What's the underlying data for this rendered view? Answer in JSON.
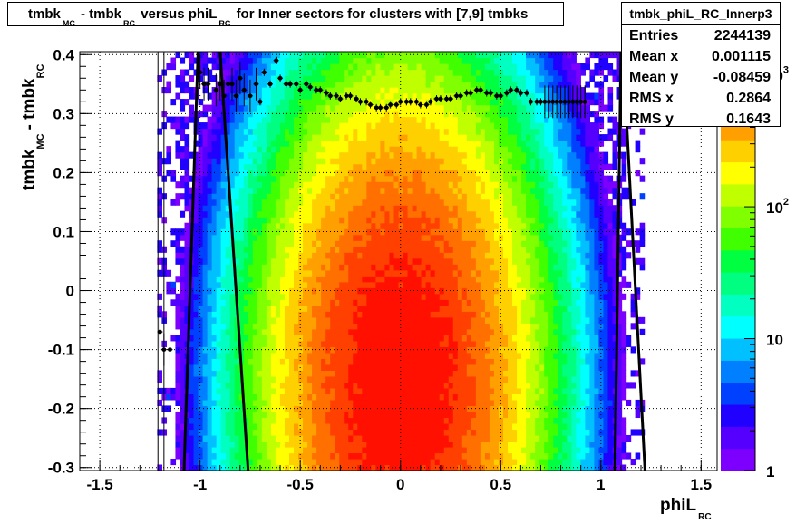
{
  "title": {
    "parts": [
      {
        "t": "tmbk",
        "sub": "MC"
      },
      {
        "t": "- tmbk",
        "sub": "RC"
      },
      {
        "t": "versus phiL",
        "sub": "RC"
      },
      {
        "t": "for Inner sectors for clusters with [7,9] tmbks",
        "sub": ""
      }
    ]
  },
  "stats": {
    "name": "tmbk_phiL_RC_Innerp3",
    "rows": [
      {
        "key": "Entries",
        "value": "2244139"
      },
      {
        "key": "Mean x",
        "value": "0.001115"
      },
      {
        "key": "Mean y",
        "value": "-0.08459"
      },
      {
        "key": "RMS x",
        "value": "0.2864"
      },
      {
        "key": "RMS y",
        "value": "0.1643"
      }
    ]
  },
  "colors": {
    "palette": [
      "#7d00ff",
      "#5500ff",
      "#2000ff",
      "#0040ff",
      "#0080ff",
      "#00c0ff",
      "#00ffff",
      "#00ffc0",
      "#00ff80",
      "#00ff40",
      "#40ff00",
      "#80ff00",
      "#c0ff00",
      "#ffff00",
      "#ffd000",
      "#ffa000",
      "#ff7000",
      "#ff4000",
      "#ff1000"
    ],
    "profile": "#000000",
    "contour": "#000000"
  },
  "chart_data": {
    "type": "heatmap",
    "xlabel": {
      "main": "phiL",
      "sub": "RC"
    },
    "ylabel": {
      "main": "tmbk",
      "sub1": "MC",
      "mid": "- tmbk",
      "sub2": "RC"
    },
    "xlim": [
      -1.6,
      1.58
    ],
    "ylim": [
      -0.305,
      0.405
    ],
    "x_ticks": [
      -1.5,
      -1,
      -0.5,
      0,
      0.5,
      1,
      1.5
    ],
    "x_tick_labels": [
      "-1.5",
      "-1",
      "-0.5",
      "0",
      "0.5",
      "1",
      "1.5"
    ],
    "y_ticks": [
      -0.3,
      -0.2,
      -0.1,
      0,
      0.1,
      0.2,
      0.3,
      0.4
    ],
    "y_tick_labels": [
      "-0.3",
      "-0.2",
      "-0.1",
      "0",
      "0.1",
      "0.2",
      "0.3",
      "0.4"
    ],
    "z_scale": "log",
    "z_range": [
      1,
      1500
    ],
    "z_tick_labels": [
      {
        "label": "1",
        "z": 1
      },
      {
        "label": "10",
        "z": 10
      },
      {
        "label": "10",
        "sup": "2",
        "z": 100
      },
      {
        "label": "10",
        "sup": "3",
        "z": 1000
      }
    ],
    "grid": true,
    "profile": {
      "x": [
        -1.2,
        -1.18,
        -1.15,
        -1.0,
        -0.98,
        -0.96,
        -0.92,
        -0.9,
        -0.88,
        -0.86,
        -0.84,
        -0.82,
        -0.8,
        -0.78,
        -0.75,
        -0.72,
        -0.7,
        -0.68,
        -0.65,
        -0.62,
        -0.6,
        -0.57,
        -0.55,
        -0.52,
        -0.5,
        -0.47,
        -0.45,
        -0.42,
        -0.4,
        -0.37,
        -0.35,
        -0.32,
        -0.3,
        -0.27,
        -0.25,
        -0.22,
        -0.2,
        -0.17,
        -0.15,
        -0.12,
        -0.1,
        -0.07,
        -0.05,
        -0.02,
        0.0,
        0.03,
        0.05,
        0.08,
        0.1,
        0.13,
        0.15,
        0.18,
        0.2,
        0.23,
        0.25,
        0.28,
        0.3,
        0.33,
        0.35,
        0.38,
        0.4,
        0.43,
        0.45,
        0.48,
        0.5,
        0.53,
        0.55,
        0.58,
        0.6,
        0.63,
        0.65,
        0.68,
        0.7,
        0.72,
        0.74,
        0.76,
        0.78,
        0.8,
        0.82,
        0.84,
        0.86,
        0.88,
        0.9,
        0.92
      ],
      "y": [
        -0.07,
        -0.1,
        -0.1,
        0.37,
        0.35,
        0.35,
        0.34,
        0.35,
        0.33,
        0.35,
        0.35,
        0.33,
        0.36,
        0.34,
        0.33,
        0.35,
        0.32,
        0.37,
        0.35,
        0.39,
        0.36,
        0.35,
        0.35,
        0.35,
        0.34,
        0.35,
        0.345,
        0.34,
        0.34,
        0.335,
        0.33,
        0.33,
        0.325,
        0.33,
        0.33,
        0.325,
        0.32,
        0.32,
        0.315,
        0.31,
        0.31,
        0.31,
        0.315,
        0.315,
        0.32,
        0.32,
        0.32,
        0.32,
        0.315,
        0.315,
        0.32,
        0.325,
        0.325,
        0.325,
        0.325,
        0.33,
        0.33,
        0.335,
        0.335,
        0.34,
        0.34,
        0.335,
        0.335,
        0.33,
        0.33,
        0.335,
        0.34,
        0.34,
        0.335,
        0.335,
        0.32,
        0.32,
        0.32,
        0.32,
        0.32,
        0.32,
        0.32,
        0.32,
        0.32,
        0.32,
        0.32,
        0.32,
        0.32,
        0.32
      ]
    },
    "contour_lines": [
      {
        "x": [
          -1.01,
          -1.08
        ],
        "y": [
          0.405,
          -0.305
        ]
      },
      {
        "x": [
          -0.9,
          -0.76
        ],
        "y": [
          0.405,
          -0.305
        ]
      },
      {
        "x": [
          1.1,
          1.07
        ],
        "y": [
          0.405,
          -0.305
        ]
      },
      {
        "x": [
          1.11,
          1.22
        ],
        "y": [
          0.405,
          -0.305
        ]
      }
    ]
  }
}
